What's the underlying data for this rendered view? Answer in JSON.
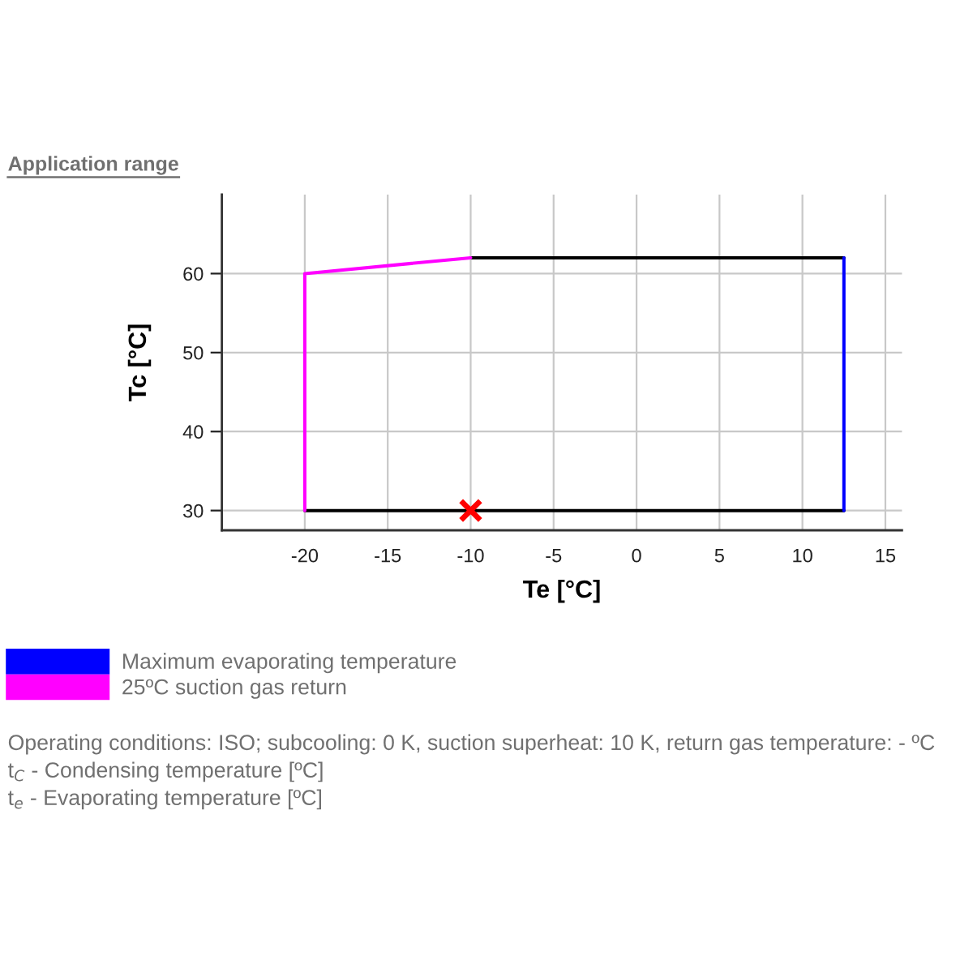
{
  "chart_data": {
    "type": "line",
    "title": "Application range",
    "xlabel": "Te [°C]",
    "ylabel": "Tc [°C]",
    "xlim": [
      -25,
      16
    ],
    "ylim": [
      27.5,
      70
    ],
    "xticks": [
      -20,
      -15,
      -10,
      -5,
      0,
      5,
      10,
      15
    ],
    "yticks": [
      30,
      40,
      50,
      60
    ],
    "grid": true,
    "legend": "bottom left",
    "line_style": "solid",
    "series": [
      {
        "color": "#000000",
        "x": [
          -10,
          12.5
        ],
        "values": [
          62,
          62
        ]
      },
      {
        "color": "#000000",
        "x": [
          -20,
          12.5
        ],
        "values": [
          30,
          30
        ]
      },
      {
        "name": "Maximum evaporating temperature",
        "color": "#0000ff",
        "x": [
          12.5,
          12.5
        ],
        "values": [
          30,
          62
        ]
      },
      {
        "name": "25ºC suction gas return",
        "color": "#ff00ff",
        "x": [
          -20,
          -20,
          -10
        ],
        "values": [
          30,
          60,
          62
        ]
      },
      {
        "type": "scatter",
        "color": "#ff0000",
        "marker": "cross",
        "x": [
          -10
        ],
        "values": [
          30
        ]
      }
    ],
    "annotations": [
      "Operating conditions: ISO; subcooling: 0 K, suction superheat: 10 K, return gas temperature: - ºC",
      "t$_{C}$ - Condensing temperature [ºC]",
      "t$_{e}$ - Evaporating temperature [ºC]"
    ]
  }
}
